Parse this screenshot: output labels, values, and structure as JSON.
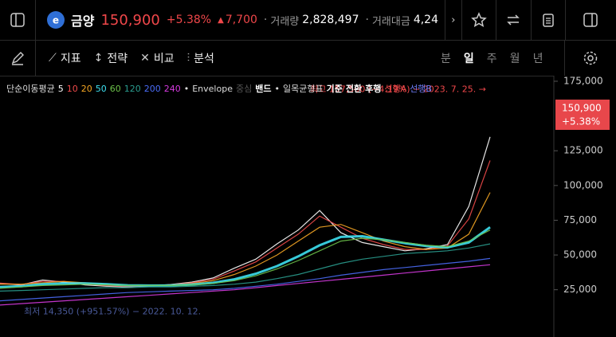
{
  "header": {
    "name": "금양",
    "price": "150,900",
    "change_pct": "+5.38%",
    "change": "7,700",
    "volume_label": "거래량",
    "volume": "2,828,497",
    "amount_label": "거래대금",
    "amount": "4,24"
  },
  "toolbar": {
    "tools": [
      "지표",
      "전략",
      "비교",
      "분석"
    ],
    "periods": [
      "분",
      "일",
      "주",
      "월",
      "년"
    ],
    "active_period_index": 1
  },
  "legend": {
    "ma_label": "단순이동평균",
    "envelope": "Envelope",
    "envelope_mid": "중심",
    "envelope_band": "밴드",
    "ichimoku": "일목균형표",
    "ichimoku_items": [
      "기준",
      "전환",
      "후행"
    ],
    "span_a": "선행A",
    "span_b": "선행B"
  },
  "chart_data": {
    "type": "line",
    "ylim": [
      -9000,
      179000
    ],
    "yticks": [
      {
        "value": 25000,
        "label": "25,000"
      },
      {
        "value": 50000,
        "label": "50,000"
      },
      {
        "value": 75000,
        "label": "75,000"
      },
      {
        "value": 100000,
        "label": "100,000"
      },
      {
        "value": 125000,
        "label": "125,000"
      },
      {
        "value": 175000,
        "label": "175,000"
      }
    ],
    "last_value": 150900,
    "last_label": "150,900",
    "last_change": "+5.38%",
    "high_value": 157500,
    "high_annotation": "최고 157,500 (−4.19%) − 2023. 7. 25. →",
    "low_value": 14350,
    "low_annotation": "최저 14,350 (+951.57%) − 2022. 10. 12.",
    "series": [
      {
        "name": "5",
        "color": "#ffffff",
        "values": [
          29500,
          28500,
          32000,
          30500,
          28500,
          27500,
          27000,
          27800,
          28800,
          30500,
          33500,
          40500,
          47000,
          58000,
          68000,
          82000,
          66000,
          59000,
          56000,
          53000,
          54500,
          57500,
          85000,
          135000
        ]
      },
      {
        "name": "10",
        "color": "#f04a4a",
        "values": [
          29800,
          28800,
          31000,
          31000,
          29000,
          28000,
          27300,
          27700,
          28600,
          30000,
          32500,
          38500,
          45000,
          55000,
          65000,
          78000,
          70000,
          62000,
          57500,
          54000,
          54000,
          56500,
          76000,
          118000
        ]
      },
      {
        "name": "20",
        "color": "#f5a623",
        "values": [
          29000,
          29000,
          30000,
          31000,
          30000,
          29000,
          28000,
          28000,
          28500,
          29500,
          31500,
          36000,
          42000,
          50000,
          60000,
          70000,
          72000,
          66000,
          60000,
          56000,
          54000,
          55000,
          65000,
          95000
        ]
      },
      {
        "name": "50",
        "color": "#3de0f0",
        "values": [
          27000,
          27500,
          29000,
          29500,
          29500,
          29000,
          28200,
          28000,
          28100,
          28700,
          30000,
          32500,
          36500,
          42000,
          49000,
          57000,
          63000,
          63500,
          61000,
          58500,
          56500,
          55500,
          59000,
          70000
        ]
      },
      {
        "name": "60",
        "color": "#6cc24a",
        "values": [
          26000,
          27000,
          28000,
          28500,
          29000,
          28500,
          28000,
          28000,
          28000,
          28500,
          29500,
          31500,
          35000,
          40000,
          46000,
          53000,
          60000,
          62000,
          61000,
          59000,
          57000,
          56000,
          60000,
          68000
        ]
      },
      {
        "name": "120",
        "color": "#2a9d8f",
        "values": [
          24000,
          24500,
          25000,
          25500,
          26000,
          26500,
          26500,
          27000,
          27000,
          27500,
          28000,
          29000,
          30500,
          33000,
          36000,
          40000,
          44000,
          47000,
          49000,
          51000,
          52000,
          53000,
          55000,
          58000
        ]
      },
      {
        "name": "200",
        "color": "#4a6cf7",
        "values": [
          17000,
          18000,
          19000,
          20000,
          21000,
          22000,
          23000,
          23500,
          24000,
          24500,
          25000,
          26000,
          27500,
          29000,
          31000,
          33000,
          35500,
          37500,
          39500,
          41000,
          42500,
          44000,
          45500,
          47500
        ]
      },
      {
        "name": "240",
        "color": "#d63ae0",
        "values": [
          14000,
          15000,
          16000,
          17000,
          18000,
          19000,
          20000,
          21000,
          22000,
          23000,
          24000,
          25000,
          26500,
          28000,
          29500,
          31000,
          32500,
          34000,
          35500,
          37000,
          38500,
          40000,
          41500,
          43000
        ]
      }
    ]
  }
}
